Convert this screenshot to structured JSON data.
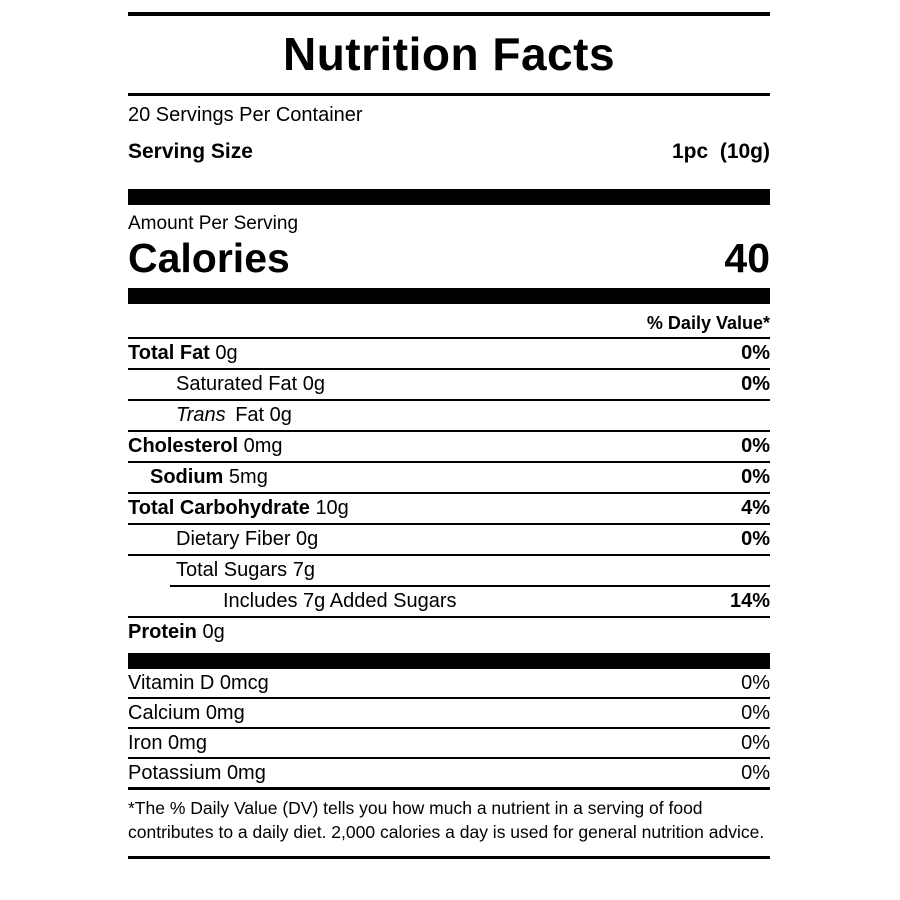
{
  "label": {
    "title": "Nutrition Facts",
    "servings_per_container": "20 Servings Per Container",
    "serving_size": {
      "label": "Serving Size",
      "value": "1pc  (10g)"
    },
    "amount_per_serving": "Amount Per Serving",
    "calories": {
      "label": "Calories",
      "value": "40"
    },
    "daily_value_header": "% Daily Value*",
    "nutrients": [
      {
        "name": "Total Fat",
        "amount": "0g",
        "dv": "0%"
      },
      {
        "name": "Saturated Fat",
        "amount": "0g",
        "dv": "0%"
      },
      {
        "name_italic": "Trans",
        "name": "Fat",
        "amount": "0g"
      },
      {
        "name": "Cholesterol",
        "amount": "0mg",
        "dv": "0%"
      },
      {
        "name": "Sodium",
        "amount": "5mg",
        "dv": "0%"
      },
      {
        "name": "Total Carbohydrate",
        "amount": "10g",
        "dv": "4%"
      },
      {
        "name": "Dietary Fiber",
        "amount": "0g",
        "dv": "0%"
      },
      {
        "name": "Total Sugars",
        "amount": "7g"
      },
      {
        "name": "Includes 7g Added Sugars",
        "dv": "14%"
      },
      {
        "name": "Protein",
        "amount": "0g"
      }
    ],
    "micronutrients": [
      {
        "name": "Vitamin D",
        "amount": "0mcg",
        "dv": "0%"
      },
      {
        "name": "Calcium",
        "amount": "0mg",
        "dv": "0%"
      },
      {
        "name": "Iron",
        "amount": "0mg",
        "dv": "0%"
      },
      {
        "name": "Potassium",
        "amount": "0mg",
        "dv": "0%"
      }
    ],
    "footnote": "*The % Daily Value (DV) tells you how much a nutrient in a serving of food contributes to a daily diet. 2,000 calories a day is used for general nutrition advice.",
    "colors": {
      "text": "#000000",
      "background": "#ffffff"
    }
  }
}
